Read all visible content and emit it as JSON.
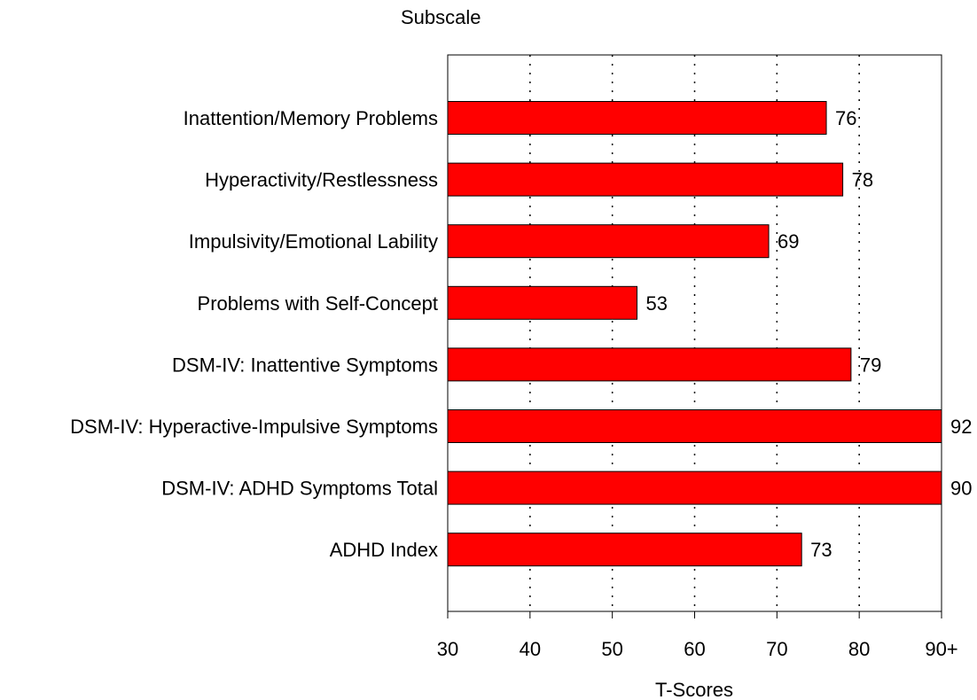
{
  "chart_data": {
    "type": "bar",
    "orientation": "horizontal",
    "title": "Subscale",
    "xlabel": "T-Scores",
    "categories": [
      "Inattention/Memory Problems",
      "Hyperactivity/Restlessness",
      "Impulsivity/Emotional Lability",
      "Problems with Self-Concept",
      "DSM-IV: Inattentive Symptoms",
      "DSM-IV: Hyperactive-Impulsive Symptoms",
      "DSM-IV: ADHD Symptoms Total",
      "ADHD Index"
    ],
    "values": [
      76,
      78,
      69,
      53,
      79,
      92,
      90,
      73
    ],
    "value_labels": [
      "76",
      "78",
      "69",
      "53",
      "79",
      "92",
      "90",
      "73"
    ],
    "xlim": [
      30,
      90
    ],
    "xticks": [
      30,
      40,
      50,
      60,
      70,
      80,
      90
    ],
    "xtick_labels": [
      "30",
      "40",
      "50",
      "60",
      "70",
      "80",
      "90+"
    ],
    "grid": "vertical dotted",
    "bar_color": "#ff0000"
  }
}
